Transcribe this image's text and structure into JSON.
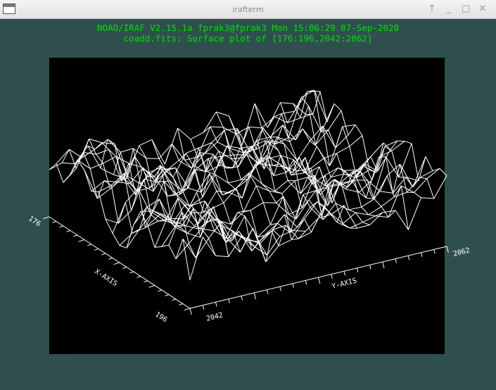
{
  "window": {
    "title": "irafterm",
    "buttons": {
      "up": "↑",
      "minimize": "_",
      "maximize": "□",
      "close": "✕"
    }
  },
  "header": {
    "line1": "NOAO/IRAF V2.15.1a fprak3@fprak3 Mon 15:06:29 07-Sep-2020",
    "line2": "coadd.fits: Surface plot of [176:196,2042:2062]"
  },
  "colors": {
    "background": "#2f4f4f",
    "header_text": "#00e000",
    "plot_background": "#000000",
    "plot_lines": "#ffffff"
  },
  "chart_data": {
    "type": "surface",
    "x_axis": {
      "label": "X-AXIS",
      "ticks": [
        "176",
        "196"
      ]
    },
    "y_axis": {
      "label": "Y-AXIS",
      "ticks": [
        "2042",
        "2062"
      ]
    },
    "grid_size": [
      21,
      21
    ],
    "seed": 7
  }
}
